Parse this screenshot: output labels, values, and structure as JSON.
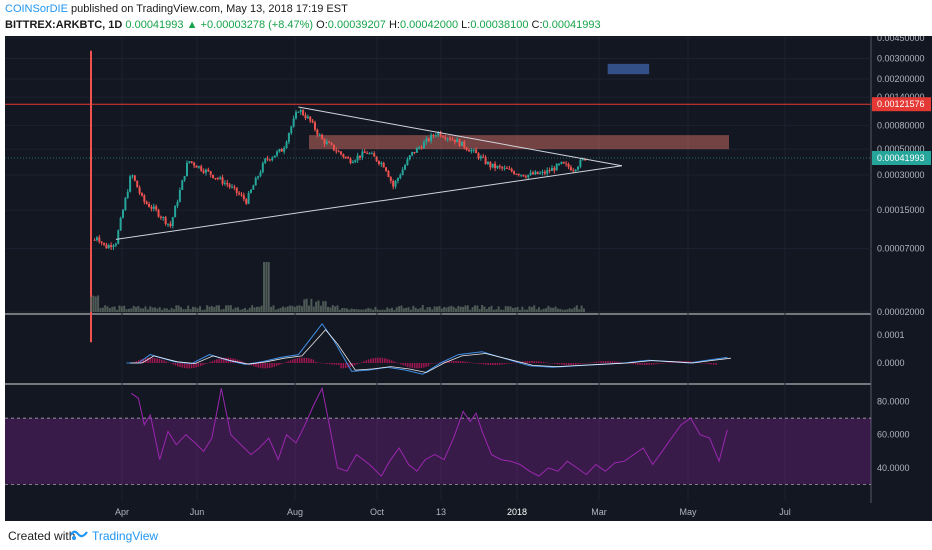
{
  "header": {
    "author": "COINSorDIE",
    "published": " published on TradingView.com, May 13, 2018 17:19 EST",
    "symbol": "BITTREX:ARKBTC, 1D",
    "last_price": "0.00041993",
    "change": "+0.00003278 (+8.47%)",
    "open_label": "O:",
    "open_value": "0.00039207",
    "high_label": "H:",
    "high_value": "0.00042000",
    "low_label": "L:",
    "low_value": "0.00038100",
    "close_label": "C:",
    "close_value": "0.00041993"
  },
  "footer": {
    "created_with": "Created with",
    "brand": "TradingView"
  },
  "colors": {
    "background": "#131722",
    "bull": "#26a69a",
    "bear": "#ef5350",
    "resistance": "#e53935",
    "zone": "#c2675e",
    "target": "#3a5a9a",
    "rsi": "#9c27b0",
    "macd": "#3f8ee6",
    "signal": "#ffffff"
  },
  "chart_data": {
    "type": "candlestick",
    "price_axis": {
      "scale": "log",
      "ticks": [
        "0.00450000",
        "0.00300000",
        "0.00200000",
        "0.00140000",
        "0.00080000",
        "0.00050000",
        "0.00030000",
        "0.00015000",
        "0.00007000",
        "0.00002000"
      ],
      "resistance_label": "0.00121576",
      "current_label": "0.00041993"
    },
    "macd_axis": {
      "ticks": [
        "0.0001",
        "0.0000"
      ]
    },
    "rsi_axis": {
      "ticks": [
        "80.0000",
        "60.0000",
        "40.0000"
      ],
      "levels": [
        70,
        30
      ]
    },
    "time_labels": [
      "Apr",
      "Jun",
      "Aug",
      "Oct",
      "13",
      "2018",
      "Mar",
      "May",
      "Jul"
    ],
    "start_date": "2017-03-22",
    "price_series": [
      [
        "2017-03-22",
        1.1e-05
      ],
      [
        "2017-03-24",
        8e-05
      ],
      [
        "2017-03-27",
        9e-05
      ],
      [
        "2017-04-03",
        7.2e-05
      ],
      [
        "2017-04-12",
        8e-05
      ],
      [
        "2017-04-25",
        0.00031
      ],
      [
        "2017-05-05",
        0.00018
      ],
      [
        "2017-05-15",
        0.00015
      ],
      [
        "2017-05-28",
        0.00011
      ],
      [
        "2017-06-12",
        0.0004
      ],
      [
        "2017-06-28",
        0.00032
      ],
      [
        "2017-07-15",
        0.00025
      ],
      [
        "2017-07-31",
        0.00018
      ],
      [
        "2017-08-16",
        0.0004
      ],
      [
        "2017-08-31",
        0.0005
      ],
      [
        "2017-09-05",
        0.0007
      ],
      [
        "2017-09-13",
        0.0011
      ],
      [
        "2017-09-22",
        0.0009
      ],
      [
        "2017-10-03",
        0.0006
      ],
      [
        "2017-10-16",
        0.00048
      ],
      [
        "2017-10-26",
        0.0004
      ],
      [
        "2017-11-10",
        0.00047
      ],
      [
        "2017-11-25",
        0.00036
      ],
      [
        "2017-12-02",
        0.00024
      ],
      [
        "2017-12-17",
        0.00045
      ],
      [
        "2017-12-27",
        0.00055
      ],
      [
        "2018-01-08",
        0.0007
      ],
      [
        "2018-01-23",
        0.0006
      ],
      [
        "2018-02-07",
        0.00048
      ],
      [
        "2018-02-22",
        0.00036
      ],
      [
        "2018-03-09",
        0.00033
      ],
      [
        "2018-03-24",
        0.0003
      ],
      [
        "2018-04-08",
        0.00031
      ],
      [
        "2018-04-23",
        0.00037
      ],
      [
        "2018-05-03",
        0.00034
      ],
      [
        "2018-05-13",
        0.00041993
      ]
    ],
    "resistance_price": 0.00121576,
    "resistance_zone": [
      0.0005,
      0.00066
    ],
    "target_zone": {
      "from": "2018-06-01",
      "to": "2018-07-06",
      "low": 0.0022,
      "high": 0.0027
    },
    "support_line": [
      [
        "2017-04-12",
        8.4e-05
      ],
      [
        "2018-06-13",
        0.00036
      ]
    ],
    "resistance_line": [
      [
        "2017-09-13",
        0.00115
      ],
      [
        "2018-06-13",
        0.00036
      ]
    ],
    "macd_series": [
      [
        0,
        0.0
      ],
      [
        10,
        0.0
      ],
      [
        20,
        3e-05
      ],
      [
        40,
        5e-06
      ],
      [
        55,
        -2e-06
      ],
      [
        70,
        3e-05
      ],
      [
        85,
        1e-05
      ],
      [
        100,
        -5e-06
      ],
      [
        115,
        5e-06
      ],
      [
        130,
        2e-05
      ],
      [
        145,
        3e-05
      ],
      [
        165,
        0.00014
      ],
      [
        175,
        8e-05
      ],
      [
        190,
        -3e-05
      ],
      [
        205,
        -2.5e-05
      ],
      [
        220,
        -1.5e-05
      ],
      [
        235,
        -2.5e-05
      ],
      [
        250,
        -4e-05
      ],
      [
        265,
        0.0
      ],
      [
        280,
        3e-05
      ],
      [
        300,
        4e-05
      ],
      [
        320,
        1.5e-05
      ],
      [
        340,
        -1e-05
      ],
      [
        360,
        -1.5e-05
      ],
      [
        380,
        -1e-05
      ],
      [
        400,
        -5e-06
      ],
      [
        420,
        0.0
      ],
      [
        440,
        1e-05
      ],
      [
        460,
        5e-06
      ],
      [
        475,
        0.0
      ],
      [
        490,
        1e-05
      ],
      [
        507,
        2e-05
      ]
    ],
    "rsi_series": [
      [
        0,
        0
      ],
      [
        4,
        85
      ],
      [
        10,
        82
      ],
      [
        15,
        66
      ],
      [
        20,
        72
      ],
      [
        28,
        45
      ],
      [
        35,
        62
      ],
      [
        42,
        54
      ],
      [
        50,
        60
      ],
      [
        58,
        55
      ],
      [
        65,
        50
      ],
      [
        72,
        58
      ],
      [
        80,
        88
      ],
      [
        88,
        60
      ],
      [
        95,
        55
      ],
      [
        105,
        48
      ],
      [
        112,
        52
      ],
      [
        120,
        58
      ],
      [
        128,
        45
      ],
      [
        135,
        60
      ],
      [
        143,
        55
      ],
      [
        150,
        65
      ],
      [
        158,
        78
      ],
      [
        165,
        88
      ],
      [
        170,
        70
      ],
      [
        178,
        40
      ],
      [
        186,
        38
      ],
      [
        194,
        48
      ],
      [
        205,
        42
      ],
      [
        215,
        35
      ],
      [
        222,
        44
      ],
      [
        230,
        52
      ],
      [
        238,
        42
      ],
      [
        245,
        38
      ],
      [
        252,
        45
      ],
      [
        260,
        48
      ],
      [
        268,
        45
      ],
      [
        276,
        58
      ],
      [
        284,
        74
      ],
      [
        290,
        68
      ],
      [
        295,
        73
      ],
      [
        300,
        62
      ],
      [
        308,
        48
      ],
      [
        316,
        45
      ],
      [
        324,
        44
      ],
      [
        332,
        42
      ],
      [
        340,
        38
      ],
      [
        348,
        35
      ],
      [
        356,
        40
      ],
      [
        364,
        38
      ],
      [
        372,
        44
      ],
      [
        380,
        40
      ],
      [
        388,
        36
      ],
      [
        396,
        42
      ],
      [
        404,
        38
      ],
      [
        412,
        43
      ],
      [
        420,
        44
      ],
      [
        428,
        48
      ],
      [
        436,
        52
      ],
      [
        444,
        42
      ],
      [
        452,
        50
      ],
      [
        460,
        58
      ],
      [
        468,
        66
      ],
      [
        476,
        70
      ],
      [
        484,
        60
      ],
      [
        492,
        58
      ],
      [
        500,
        44
      ],
      [
        507,
        63
      ]
    ]
  }
}
